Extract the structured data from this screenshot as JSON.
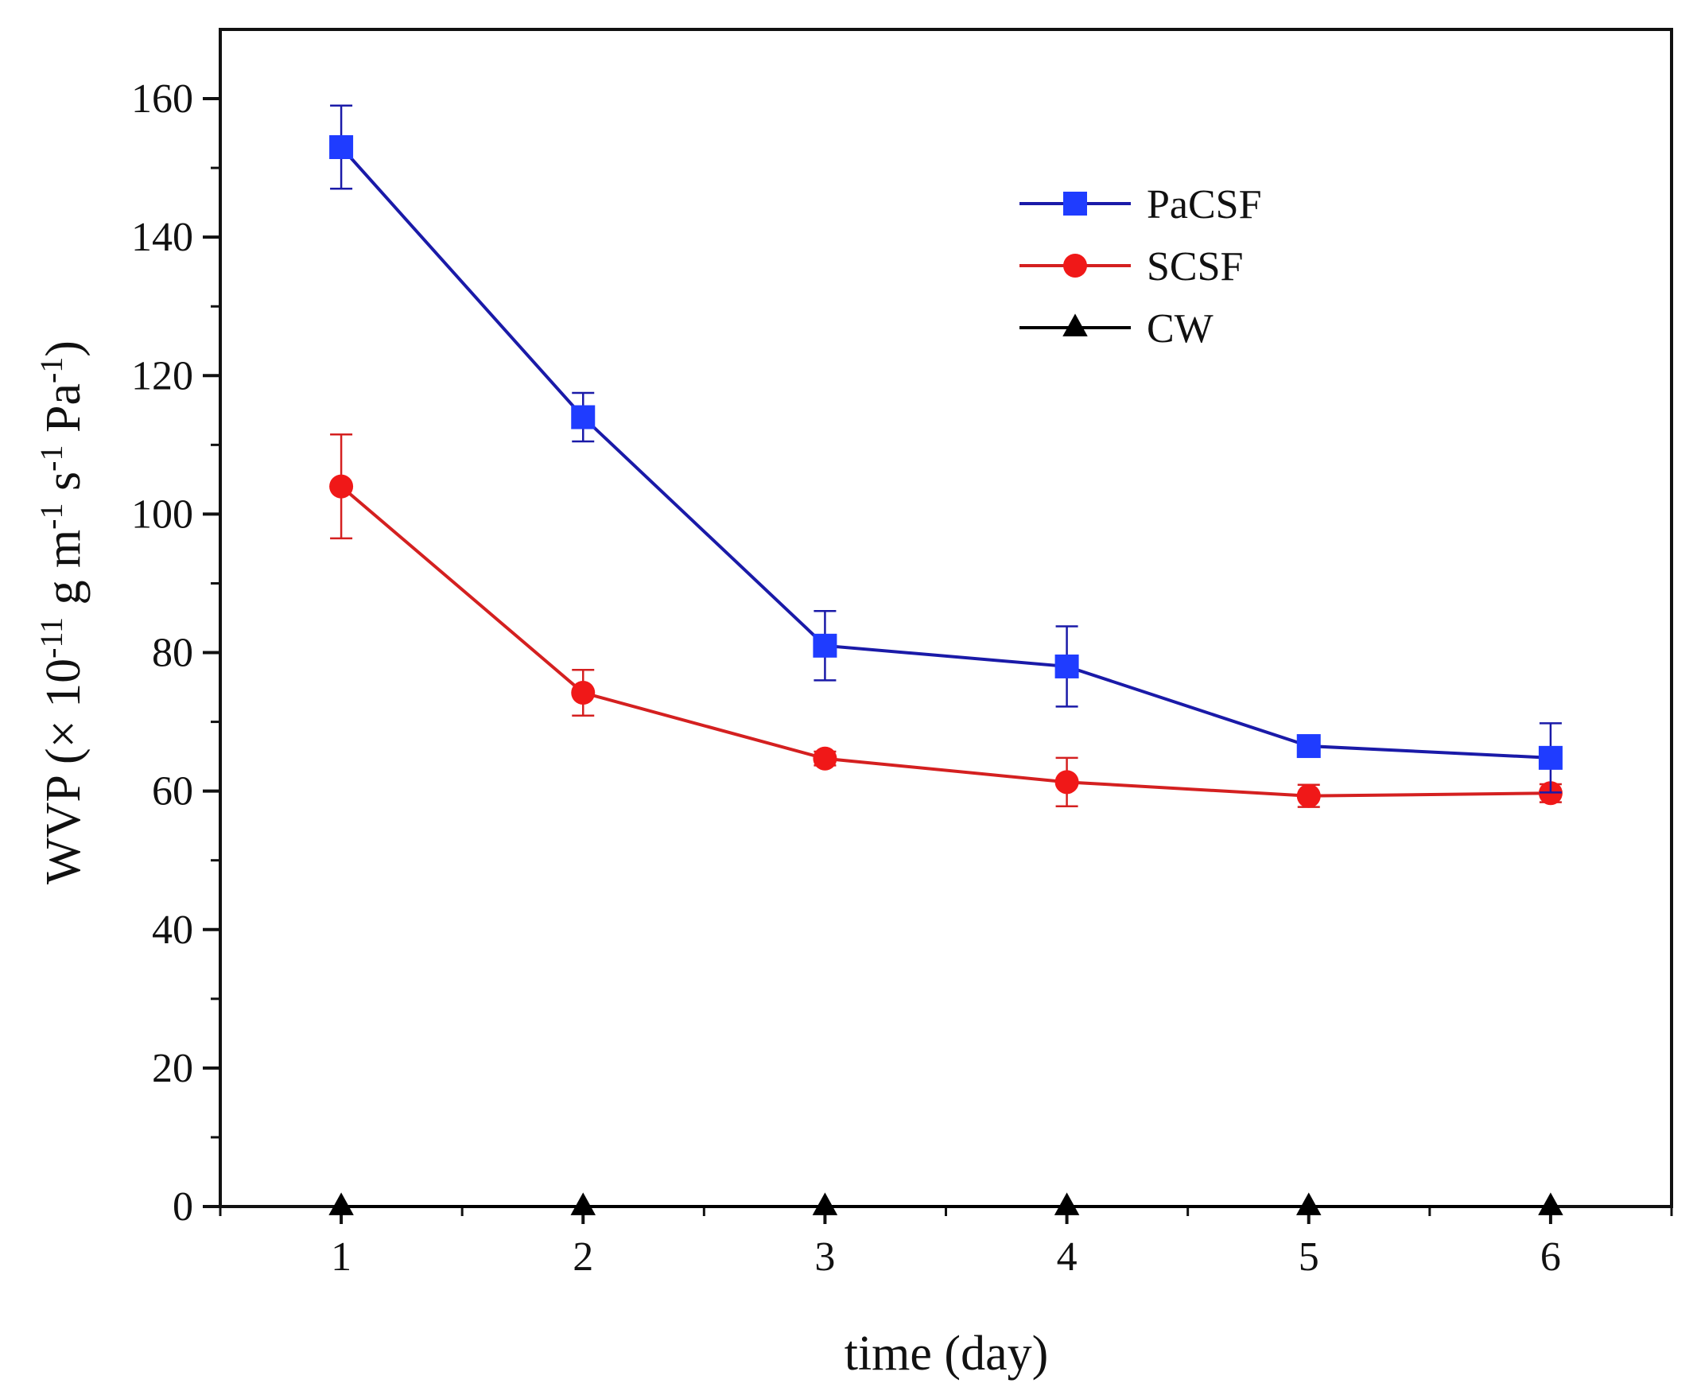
{
  "chart_data": {
    "type": "line",
    "title": "",
    "xlabel": "time (day)",
    "ylabel": {
      "main": "WVP (× 10",
      "exp1": "-11",
      "mid1": " g m",
      "exp2": "-1",
      "mid2": " s",
      "exp3": "-1",
      "mid3": " Pa",
      "exp4": "-1",
      "end": ")"
    },
    "x": [
      1,
      2,
      3,
      4,
      5,
      6
    ],
    "xlim": [
      0.5,
      6.5
    ],
    "ylim": [
      0,
      170
    ],
    "xticks": [
      "1",
      "2",
      "3",
      "4",
      "5",
      "6"
    ],
    "yticks": [
      "0",
      "20",
      "40",
      "60",
      "80",
      "100",
      "120",
      "140",
      "160"
    ],
    "legend_position": "top-right",
    "series": [
      {
        "name": "PaCSF",
        "color": "#1a1aa8",
        "marker_color": "#1f3cff",
        "marker": "square",
        "values": [
          153,
          114,
          81,
          78,
          66.5,
          64.8
        ],
        "errors": [
          6,
          3.5,
          5,
          5.8,
          1.5,
          5
        ]
      },
      {
        "name": "SCSF",
        "color": "#d42020",
        "marker_color": "#f01818",
        "marker": "circle",
        "values": [
          104,
          74.2,
          64.7,
          61.3,
          59.3,
          59.7
        ],
        "errors": [
          7.5,
          3.3,
          1,
          3.5,
          1.6,
          1.3
        ]
      },
      {
        "name": "CW",
        "color": "#000000",
        "marker_color": "#000000",
        "marker": "triangle",
        "values": [
          0,
          0,
          0,
          0,
          0,
          0
        ],
        "errors": [
          0,
          0,
          0,
          0,
          0,
          0
        ]
      }
    ]
  }
}
